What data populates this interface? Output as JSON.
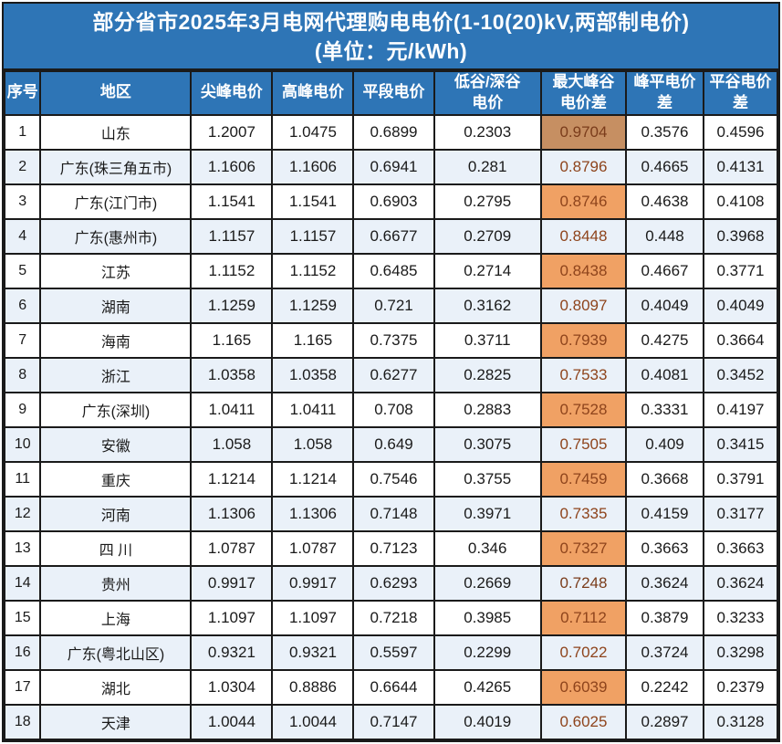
{
  "title": {
    "line1": "部分省市2025年3月电网代理购电电价(1-10(20)kV,两部制电价)",
    "line2": "(单位：元/kWh)"
  },
  "colors": {
    "header_blue": "#2E75B6",
    "row_alt_blue": "#EAF1F9",
    "highlight_orange": "#F0A164",
    "highlight_orange_dark": "#C68F62",
    "highlight_text_brown": "#8E441C",
    "border_dark": "#1A1A1A",
    "title_text": "#FFFFFF"
  },
  "table": {
    "highlight_column_index": 6,
    "columns": [
      {
        "key": "index",
        "label": "序号"
      },
      {
        "key": "region",
        "label": "地区"
      },
      {
        "key": "sharp_peak_price",
        "label": "尖峰电价"
      },
      {
        "key": "peak_price",
        "label": "高峰电价"
      },
      {
        "key": "flat_price",
        "label": "平段电价"
      },
      {
        "key": "valley_price",
        "label": "低谷/深谷\n电价"
      },
      {
        "key": "max_peak_valley_diff",
        "label": "最大峰谷\n电价差"
      },
      {
        "key": "peak_flat_diff",
        "label": "峰平电价\n差"
      },
      {
        "key": "flat_valley_diff",
        "label": "平谷电价\n差"
      }
    ],
    "rows": [
      {
        "cells": [
          "1",
          "山东",
          "1.2007",
          "1.0475",
          "0.6899",
          "0.2303",
          "0.9704",
          "0.3576",
          "0.4596"
        ],
        "highlight_shade": "dark"
      },
      {
        "cells": [
          "2",
          "广东(珠三角五市)",
          "1.1606",
          "1.1606",
          "0.6941",
          "0.281",
          "0.8796",
          "0.4665",
          "0.4131"
        ],
        "highlight_shade": "normal"
      },
      {
        "cells": [
          "3",
          "广东(江门市)",
          "1.1541",
          "1.1541",
          "0.6903",
          "0.2795",
          "0.8746",
          "0.4638",
          "0.4108"
        ],
        "highlight_shade": "normal"
      },
      {
        "cells": [
          "4",
          "广东(惠州市)",
          "1.1157",
          "1.1157",
          "0.6677",
          "0.2709",
          "0.8448",
          "0.448",
          "0.3968"
        ],
        "highlight_shade": "normal"
      },
      {
        "cells": [
          "5",
          "江苏",
          "1.1152",
          "1.1152",
          "0.6485",
          "0.2714",
          "0.8438",
          "0.4667",
          "0.3771"
        ],
        "highlight_shade": "normal"
      },
      {
        "cells": [
          "6",
          "湖南",
          "1.1259",
          "1.1259",
          "0.721",
          "0.3162",
          "0.8097",
          "0.4049",
          "0.4049"
        ],
        "highlight_shade": "normal"
      },
      {
        "cells": [
          "7",
          "海南",
          "1.165",
          "1.165",
          "0.7375",
          "0.3711",
          "0.7939",
          "0.4275",
          "0.3664"
        ],
        "highlight_shade": "normal"
      },
      {
        "cells": [
          "8",
          "浙江",
          "1.0358",
          "1.0358",
          "0.6277",
          "0.2825",
          "0.7533",
          "0.4081",
          "0.3452"
        ],
        "highlight_shade": "normal"
      },
      {
        "cells": [
          "9",
          "广东(深圳)",
          "1.0411",
          "1.0411",
          "0.708",
          "0.2883",
          "0.7528",
          "0.3331",
          "0.4197"
        ],
        "highlight_shade": "normal"
      },
      {
        "cells": [
          "10",
          "安徽",
          "1.058",
          "1.058",
          "0.649",
          "0.3075",
          "0.7505",
          "0.409",
          "0.3415"
        ],
        "highlight_shade": "normal"
      },
      {
        "cells": [
          "11",
          "重庆",
          "1.1214",
          "1.1214",
          "0.7546",
          "0.3755",
          "0.7459",
          "0.3668",
          "0.3791"
        ],
        "highlight_shade": "normal"
      },
      {
        "cells": [
          "12",
          "河南",
          "1.1306",
          "1.1306",
          "0.7148",
          "0.3971",
          "0.7335",
          "0.4159",
          "0.3177"
        ],
        "highlight_shade": "normal"
      },
      {
        "cells": [
          "13",
          "四 川",
          "1.0787",
          "1.0787",
          "0.7123",
          "0.346",
          "0.7327",
          "0.3663",
          "0.3663"
        ],
        "highlight_shade": "normal"
      },
      {
        "cells": [
          "14",
          "贵州",
          "0.9917",
          "0.9917",
          "0.6293",
          "0.2669",
          "0.7248",
          "0.3624",
          "0.3624"
        ],
        "highlight_shade": "dark"
      },
      {
        "cells": [
          "15",
          "上海",
          "1.1097",
          "1.1097",
          "0.7218",
          "0.3985",
          "0.7112",
          "0.3879",
          "0.3233"
        ],
        "highlight_shade": "normal"
      },
      {
        "cells": [
          "16",
          "广东(粤北山区)",
          "0.9321",
          "0.9321",
          "0.5597",
          "0.2299",
          "0.7022",
          "0.3724",
          "0.3298"
        ],
        "highlight_shade": "normal"
      },
      {
        "cells": [
          "17",
          "湖北",
          "1.0304",
          "0.8886",
          "0.6644",
          "0.4265",
          "0.6039",
          "0.2242",
          "0.2379"
        ],
        "highlight_shade": "normal"
      },
      {
        "cells": [
          "18",
          "天津",
          "1.0044",
          "1.0044",
          "0.7147",
          "0.4019",
          "0.6025",
          "0.2897",
          "0.3128"
        ],
        "highlight_shade": "normal"
      }
    ]
  },
  "chart_data": {
    "type": "table",
    "title": "部分省市2025年3月电网代理购电电价(1-10(20)kV,两部制电价)",
    "unit": "元/kWh",
    "columns": [
      "序号",
      "地区",
      "尖峰电价",
      "高峰电价",
      "平段电价",
      "低谷/深谷电价",
      "最大峰谷电价差",
      "峰平电价差",
      "平谷电价差"
    ],
    "highlight_column": "最大峰谷电价差",
    "rows": [
      [
        1,
        "山东",
        1.2007,
        1.0475,
        0.6899,
        0.2303,
        0.9704,
        0.3576,
        0.4596
      ],
      [
        2,
        "广东(珠三角五市)",
        1.1606,
        1.1606,
        0.6941,
        0.281,
        0.8796,
        0.4665,
        0.4131
      ],
      [
        3,
        "广东(江门市)",
        1.1541,
        1.1541,
        0.6903,
        0.2795,
        0.8746,
        0.4638,
        0.4108
      ],
      [
        4,
        "广东(惠州市)",
        1.1157,
        1.1157,
        0.6677,
        0.2709,
        0.8448,
        0.448,
        0.3968
      ],
      [
        5,
        "江苏",
        1.1152,
        1.1152,
        0.6485,
        0.2714,
        0.8438,
        0.4667,
        0.3771
      ],
      [
        6,
        "湖南",
        1.1259,
        1.1259,
        0.721,
        0.3162,
        0.8097,
        0.4049,
        0.4049
      ],
      [
        7,
        "海南",
        1.165,
        1.165,
        0.7375,
        0.3711,
        0.7939,
        0.4275,
        0.3664
      ],
      [
        8,
        "浙江",
        1.0358,
        1.0358,
        0.6277,
        0.2825,
        0.7533,
        0.4081,
        0.3452
      ],
      [
        9,
        "广东(深圳)",
        1.0411,
        1.0411,
        0.708,
        0.2883,
        0.7528,
        0.3331,
        0.4197
      ],
      [
        10,
        "安徽",
        1.058,
        1.058,
        0.649,
        0.3075,
        0.7505,
        0.409,
        0.3415
      ],
      [
        11,
        "重庆",
        1.1214,
        1.1214,
        0.7546,
        0.3755,
        0.7459,
        0.3668,
        0.3791
      ],
      [
        12,
        "河南",
        1.1306,
        1.1306,
        0.7148,
        0.3971,
        0.7335,
        0.4159,
        0.3177
      ],
      [
        13,
        "四川",
        1.0787,
        1.0787,
        0.7123,
        0.346,
        0.7327,
        0.3663,
        0.3663
      ],
      [
        14,
        "贵州",
        0.9917,
        0.9917,
        0.6293,
        0.2669,
        0.7248,
        0.3624,
        0.3624
      ],
      [
        15,
        "上海",
        1.1097,
        1.1097,
        0.7218,
        0.3985,
        0.7112,
        0.3879,
        0.3233
      ],
      [
        16,
        "广东(粤北山区)",
        0.9321,
        0.9321,
        0.5597,
        0.2299,
        0.7022,
        0.3724,
        0.3298
      ],
      [
        17,
        "湖北",
        1.0304,
        0.8886,
        0.6644,
        0.4265,
        0.6039,
        0.2242,
        0.2379
      ],
      [
        18,
        "天津",
        1.0044,
        1.0044,
        0.7147,
        0.4019,
        0.6025,
        0.2897,
        0.3128
      ]
    ]
  }
}
